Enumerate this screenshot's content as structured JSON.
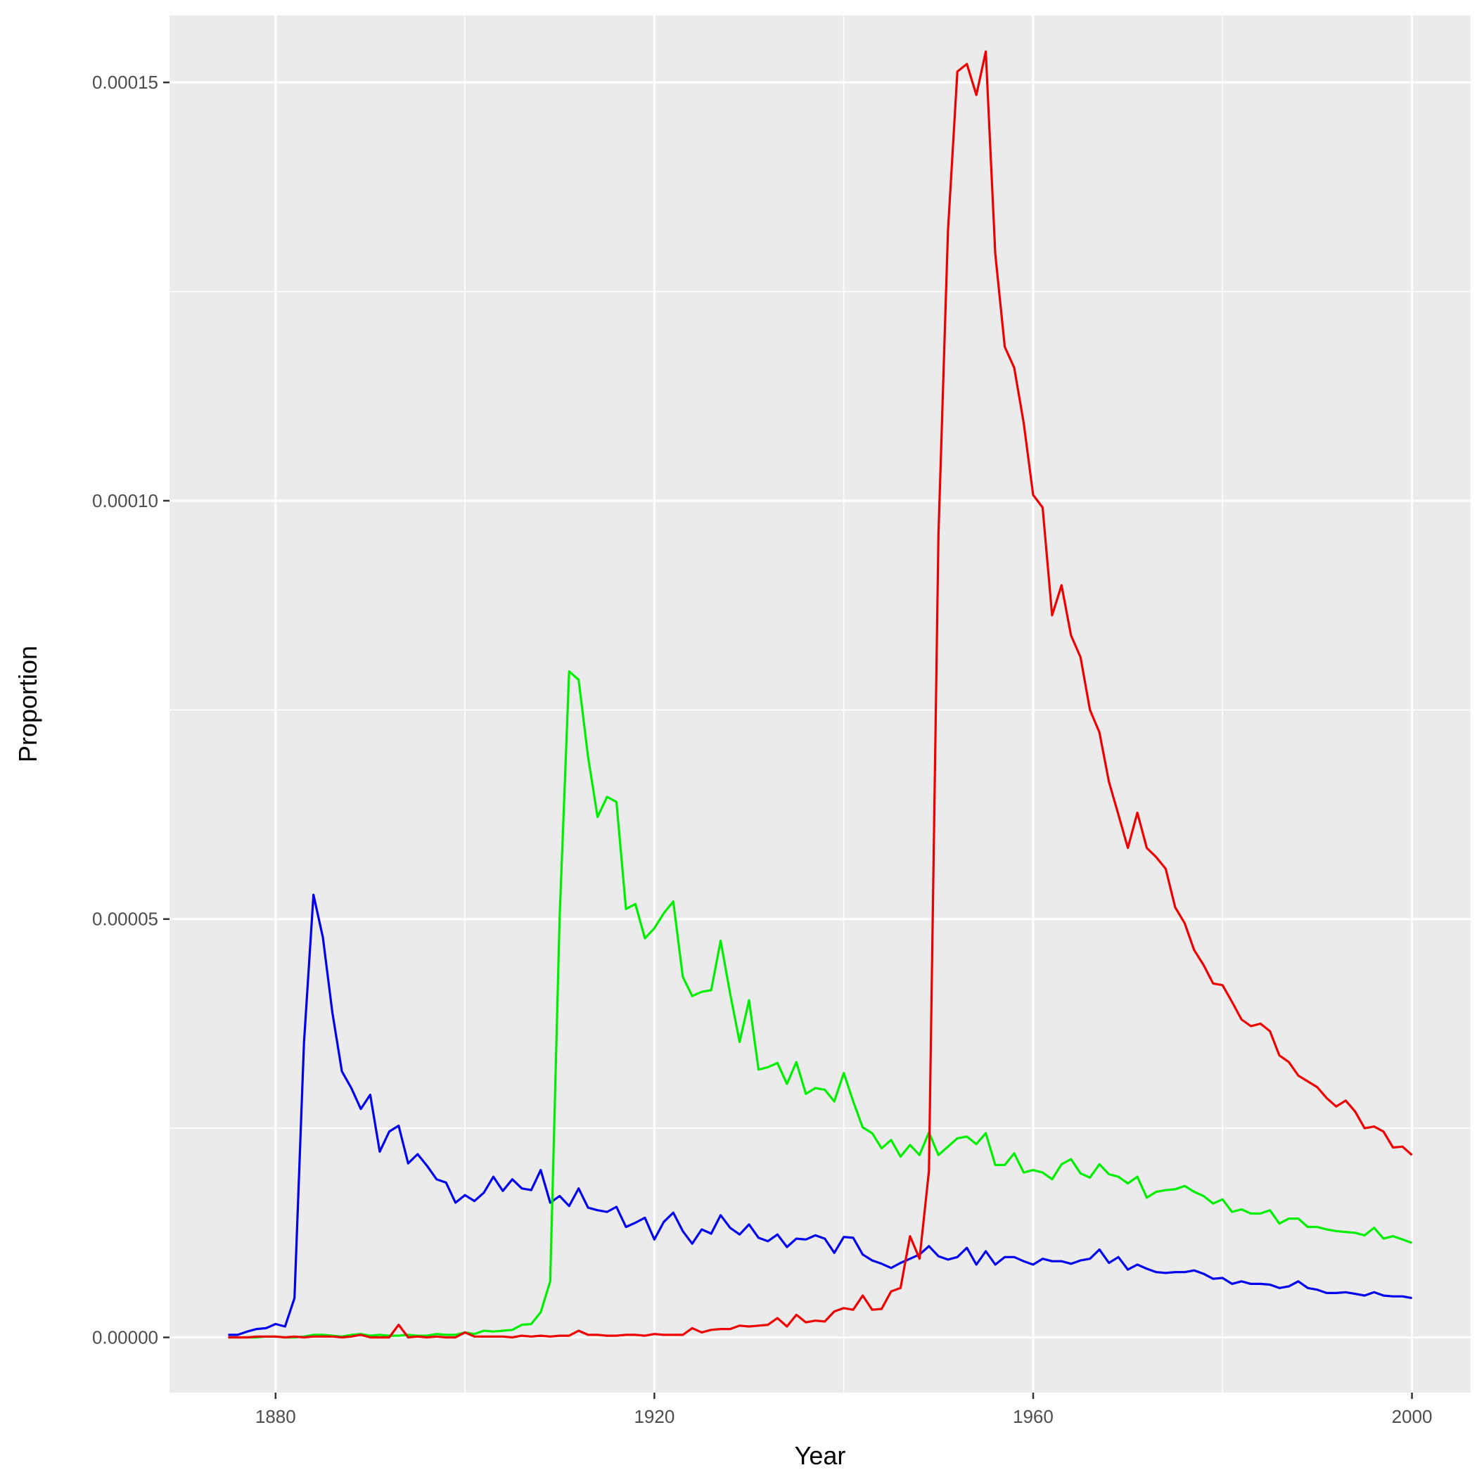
{
  "chart_data": {
    "type": "line",
    "title": "",
    "xlabel": "Year",
    "ylabel": "Proportion",
    "xlim": [
      1868.8,
      2006.2
    ],
    "ylim": [
      -6.6e-06,
      0.000158
    ],
    "x_ticks": [
      {
        "value": 1880,
        "label": "1880"
      },
      {
        "value": 1920,
        "label": "1920"
      },
      {
        "value": 1960,
        "label": "1960"
      },
      {
        "value": 2000,
        "label": "2000"
      }
    ],
    "y_ticks": [
      {
        "value": 0,
        "label": "0.00000"
      },
      {
        "value": 5e-05,
        "label": "0.00005"
      },
      {
        "value": 0.0001,
        "label": "0.00010"
      },
      {
        "value": 0.00015,
        "label": "0.00015"
      }
    ],
    "grid": true,
    "background": "#ebebeb",
    "legend": "none",
    "x": [
      1875,
      1876,
      1877,
      1878,
      1879,
      1880,
      1881,
      1882,
      1883,
      1884,
      1885,
      1886,
      1887,
      1888,
      1889,
      1890,
      1891,
      1892,
      1893,
      1894,
      1895,
      1896,
      1897,
      1898,
      1899,
      1900,
      1901,
      1902,
      1903,
      1904,
      1905,
      1906,
      1907,
      1908,
      1909,
      1910,
      1911,
      1912,
      1913,
      1914,
      1915,
      1916,
      1917,
      1918,
      1919,
      1920,
      1921,
      1922,
      1923,
      1924,
      1925,
      1926,
      1927,
      1928,
      1929,
      1930,
      1931,
      1932,
      1933,
      1934,
      1935,
      1936,
      1937,
      1938,
      1939,
      1940,
      1941,
      1942,
      1943,
      1944,
      1945,
      1946,
      1947,
      1948,
      1949,
      1950,
      1951,
      1952,
      1953,
      1954,
      1955,
      1956,
      1957,
      1958,
      1959,
      1960,
      1961,
      1962,
      1963,
      1964,
      1965,
      1966,
      1967,
      1968,
      1969,
      1970,
      1971,
      1972,
      1973,
      1974,
      1975,
      1976,
      1977,
      1978,
      1979,
      1980,
      1981,
      1982,
      1983,
      1984,
      1985,
      1986,
      1987,
      1988,
      1989,
      1990,
      1991,
      1992,
      1993,
      1994,
      1995,
      1996,
      1997,
      1998,
      1999,
      2000
    ],
    "series": [
      {
        "color": "#0000ee",
        "values": [
          3e-07,
          3e-07,
          7e-07,
          1e-06,
          1.1e-06,
          1.6e-06,
          1.3e-06,
          4.7e-06,
          3.52e-05,
          5.29e-05,
          4.78e-05,
          3.88e-05,
          3.18e-05,
          2.98e-05,
          2.73e-05,
          2.9e-05,
          2.22e-05,
          2.46e-05,
          2.53e-05,
          2.08e-05,
          2.19e-05,
          2.05e-05,
          1.89e-05,
          1.85e-05,
          1.61e-05,
          1.7e-05,
          1.63e-05,
          1.73e-05,
          1.92e-05,
          1.75e-05,
          1.89e-05,
          1.78e-05,
          1.76e-05,
          2e-05,
          1.61e-05,
          1.69e-05,
          1.57e-05,
          1.78e-05,
          1.55e-05,
          1.52e-05,
          1.5e-05,
          1.56e-05,
          1.32e-05,
          1.37e-05,
          1.43e-05,
          1.17e-05,
          1.38e-05,
          1.49e-05,
          1.27e-05,
          1.12e-05,
          1.29e-05,
          1.24e-05,
          1.46e-05,
          1.31e-05,
          1.23e-05,
          1.35e-05,
          1.19e-05,
          1.15e-05,
          1.23e-05,
          1.08e-05,
          1.18e-05,
          1.17e-05,
          1.22e-05,
          1.18e-05,
          1.01e-05,
          1.2e-05,
          1.19e-05,
          9.9e-06,
          9.2e-06,
          8.8e-06,
          8.3e-06,
          8.9e-06,
          9.4e-06,
          9.9e-06,
          1.09e-05,
          9.7e-06,
          9.3e-06,
          9.6e-06,
          1.07e-05,
          8.7e-06,
          1.03e-05,
          8.7e-06,
          9.6e-06,
          9.6e-06,
          9.1e-06,
          8.7e-06,
          9.4e-06,
          9.1e-06,
          9.1e-06,
          8.8e-06,
          9.2e-06,
          9.4e-06,
          1.05e-05,
          8.9e-06,
          9.6e-06,
          8.1e-06,
          8.7e-06,
          8.2e-06,
          7.8e-06,
          7.7e-06,
          7.8e-06,
          7.8e-06,
          8e-06,
          7.6e-06,
          7e-06,
          7.1e-06,
          6.4e-06,
          6.7e-06,
          6.4e-06,
          6.4e-06,
          6.3e-06,
          5.9e-06,
          6.1e-06,
          6.7e-06,
          5.9e-06,
          5.7e-06,
          5.3e-06,
          5.3e-06,
          5.4e-06,
          5.2e-06,
          5e-06,
          5.4e-06,
          5e-06,
          4.9e-06,
          4.9e-06,
          4.7e-06
        ]
      },
      {
        "color": "#00ee00",
        "values": [
          0,
          0,
          0,
          0,
          1e-07,
          1e-07,
          0,
          0,
          1e-07,
          3e-07,
          3e-07,
          2e-07,
          1e-07,
          3e-07,
          4e-07,
          2e-07,
          3e-07,
          2e-07,
          2e-07,
          3e-07,
          2e-07,
          2e-07,
          4e-07,
          3e-07,
          3e-07,
          6e-07,
          4e-07,
          8e-07,
          7e-07,
          8e-07,
          9e-07,
          1.5e-06,
          1.6e-06,
          3e-06,
          6.7e-06,
          5.02e-05,
          7.96e-05,
          7.86e-05,
          6.94e-05,
          6.22e-05,
          6.46e-05,
          6.4e-05,
          5.12e-05,
          5.18e-05,
          4.77e-05,
          4.89e-05,
          5.07e-05,
          5.21e-05,
          4.31e-05,
          4.08e-05,
          4.13e-05,
          4.15e-05,
          4.74e-05,
          4.11e-05,
          3.53e-05,
          4.03e-05,
          3.2e-05,
          3.23e-05,
          3.28e-05,
          3.03e-05,
          3.29e-05,
          2.91e-05,
          2.98e-05,
          2.96e-05,
          2.82e-05,
          3.16e-05,
          2.82e-05,
          2.51e-05,
          2.44e-05,
          2.26e-05,
          2.36e-05,
          2.16e-05,
          2.3e-05,
          2.18e-05,
          2.45e-05,
          2.18e-05,
          2.28e-05,
          2.38e-05,
          2.4e-05,
          2.31e-05,
          2.44e-05,
          2.06e-05,
          2.06e-05,
          2.2e-05,
          1.97e-05,
          2e-05,
          1.97e-05,
          1.89e-05,
          2.07e-05,
          2.13e-05,
          1.96e-05,
          1.91e-05,
          2.07e-05,
          1.95e-05,
          1.92e-05,
          1.84e-05,
          1.92e-05,
          1.67e-05,
          1.74e-05,
          1.76e-05,
          1.77e-05,
          1.81e-05,
          1.74e-05,
          1.69e-05,
          1.6e-05,
          1.65e-05,
          1.5e-05,
          1.53e-05,
          1.48e-05,
          1.48e-05,
          1.52e-05,
          1.36e-05,
          1.42e-05,
          1.42e-05,
          1.32e-05,
          1.32e-05,
          1.29e-05,
          1.27e-05,
          1.26e-05,
          1.25e-05,
          1.22e-05,
          1.31e-05,
          1.18e-05,
          1.21e-05,
          1.17e-05,
          1.13e-05
        ]
      },
      {
        "color": "#ee0000",
        "values": [
          0,
          0,
          0,
          1e-07,
          1e-07,
          1e-07,
          0,
          1e-07,
          0,
          1e-07,
          1e-07,
          1e-07,
          0,
          1e-07,
          3e-07,
          0,
          0,
          0,
          1.5e-06,
          0,
          1e-07,
          0,
          1e-07,
          0,
          0,
          6e-07,
          1e-07,
          1e-07,
          1e-07,
          1e-07,
          0,
          2e-07,
          1e-07,
          2e-07,
          1e-07,
          2e-07,
          2e-07,
          8e-07,
          3e-07,
          3e-07,
          2e-07,
          2e-07,
          3e-07,
          3e-07,
          2e-07,
          4e-07,
          3e-07,
          3e-07,
          3e-07,
          1.1e-06,
          6e-07,
          9e-07,
          1e-06,
          1e-06,
          1.4e-06,
          1.3e-06,
          1.4e-06,
          1.5e-06,
          2.3e-06,
          1.3e-06,
          2.7e-06,
          1.8e-06,
          2e-06,
          1.9e-06,
          3.1e-06,
          3.5e-06,
          3.3e-06,
          5e-06,
          3.3e-06,
          3.4e-06,
          5.5e-06,
          5.9e-06,
          1.21e-05,
          9.4e-06,
          1.99e-05,
          9.59e-05,
          0.0001322,
          0.0001513,
          0.0001522,
          0.0001485,
          0.0001537,
          0.0001295,
          0.0001184,
          0.0001159,
          0.0001093,
          0.0001007,
          9.92e-05,
          8.63e-05,
          8.99e-05,
          8.39e-05,
          8.13e-05,
          7.5e-05,
          7.23e-05,
          6.64e-05,
          6.25e-05,
          5.85e-05,
          6.27e-05,
          5.85e-05,
          5.74e-05,
          5.6e-05,
          5.14e-05,
          4.95e-05,
          4.63e-05,
          4.45e-05,
          4.23e-05,
          4.21e-05,
          4.01e-05,
          3.8e-05,
          3.72e-05,
          3.75e-05,
          3.66e-05,
          3.37e-05,
          3.29e-05,
          3.13e-05,
          3.06e-05,
          2.99e-05,
          2.86e-05,
          2.76e-05,
          2.83e-05,
          2.7e-05,
          2.5e-05,
          2.52e-05,
          2.46e-05,
          2.27e-05,
          2.28e-05,
          2.18e-05
        ]
      }
    ]
  }
}
